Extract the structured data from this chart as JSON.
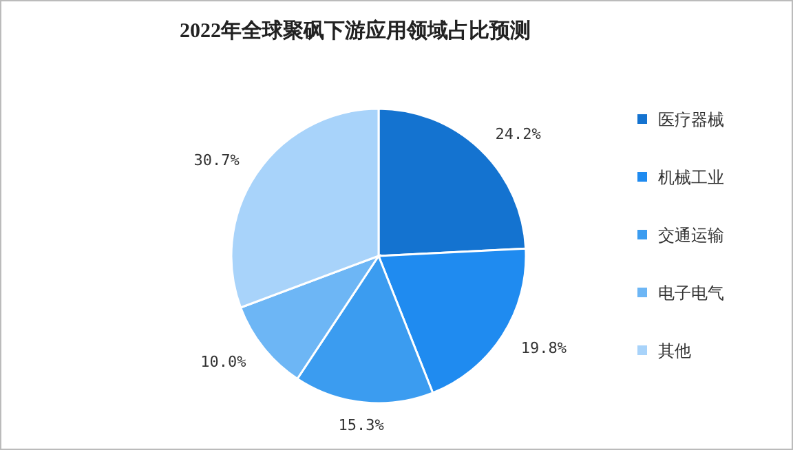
{
  "chart_data": {
    "type": "pie",
    "title": "2022年全球聚砜下游应用领域占比预测",
    "categories": [
      "医疗器械",
      "机械工业",
      "交通运输",
      "电子电气",
      "其他"
    ],
    "values": [
      24.2,
      19.8,
      15.3,
      10.0,
      30.7
    ],
    "colors": [
      "#1473d0",
      "#1f8bf0",
      "#3b9cf0",
      "#6db6f5",
      "#a8d3fa"
    ],
    "value_labels": [
      "24.2%",
      "19.8%",
      "15.3%",
      "10.0%",
      "30.7%"
    ],
    "legend": "right"
  }
}
